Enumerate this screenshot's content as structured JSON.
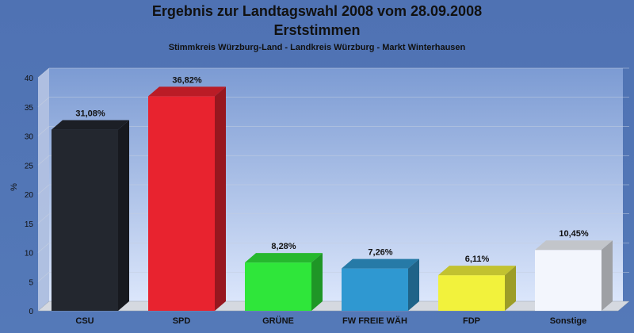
{
  "title": "Ergebnis zur Landtagswahl 2008 vom 28.09.2008",
  "subtitle": "Erststimmen",
  "subsubtitle": "Stimmkreis Würzburg-Land - Landkreis Würzburg - Markt Winterhausen",
  "chart_data": {
    "type": "bar",
    "ylabel": "%",
    "ylim": [
      0,
      40
    ],
    "yticks": [
      0,
      5,
      10,
      15,
      20,
      25,
      30,
      35,
      40
    ],
    "grid": true,
    "categories": [
      "CSU",
      "SPD",
      "GRÜNE",
      "FW FREIE WÄH",
      "FDP",
      "Sonstige"
    ],
    "values": [
      31.08,
      36.82,
      8.28,
      7.26,
      6.11,
      10.45
    ],
    "value_labels": [
      "31,08%",
      "36,82%",
      "8,28%",
      "7,26%",
      "6,11%",
      "10,45%"
    ],
    "colors": [
      "#23272f",
      "#e8232f",
      "#2fe63a",
      "#2f98d1",
      "#f2f23c",
      "#f3f6fd"
    ]
  }
}
